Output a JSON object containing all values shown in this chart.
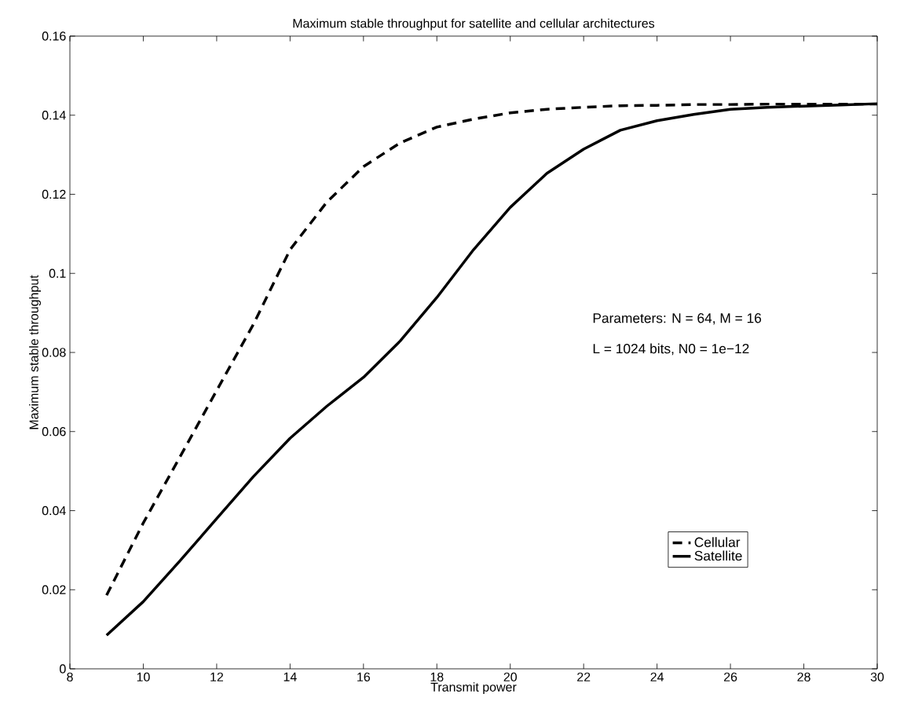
{
  "chart_data": {
    "type": "line",
    "title": "Maximum stable throughput for satellite and cellular architectures",
    "xlabel": "Transmit power",
    "ylabel": "Maximum stable throughput",
    "x": [
      9,
      10,
      11,
      12,
      13,
      14,
      15,
      16,
      17,
      18,
      19,
      20,
      21,
      22,
      23,
      24,
      25,
      26,
      27,
      28,
      29,
      30
    ],
    "series": [
      {
        "name": "Cellular",
        "color": "#000000",
        "line_style": "dashed",
        "values": [
          0.0186,
          0.0369,
          0.0536,
          0.0704,
          0.0871,
          0.106,
          0.118,
          0.127,
          0.133,
          0.137,
          0.139,
          0.1406,
          0.1415,
          0.142,
          0.1424,
          0.1425,
          0.1427,
          0.1427,
          0.1428,
          0.1428,
          0.1428,
          0.1428
        ]
      },
      {
        "name": "Satellite",
        "color": "#000000",
        "line_style": "solid",
        "values": [
          0.0085,
          0.017,
          0.0273,
          0.038,
          0.0486,
          0.0583,
          0.0664,
          0.0737,
          0.0829,
          0.0939,
          0.106,
          0.1167,
          0.1253,
          0.1314,
          0.1362,
          0.1386,
          0.1402,
          0.1415,
          0.142,
          0.1423,
          0.1426,
          0.1429
        ]
      }
    ],
    "xlim": [
      8,
      30
    ],
    "ylim": [
      0,
      0.16
    ],
    "xticks": [
      8,
      10,
      12,
      14,
      16,
      18,
      20,
      22,
      24,
      26,
      28,
      30
    ],
    "yticks": [
      0,
      0.02,
      0.04,
      0.06,
      0.08,
      0.1,
      0.12,
      0.14,
      0.16
    ],
    "annotations": [
      "Parameters: N = 64, M = 16",
      "L = 1024 bits, N0 = 1e−12"
    ],
    "legend": "bottom right",
    "grid": false,
    "marker": "none"
  }
}
